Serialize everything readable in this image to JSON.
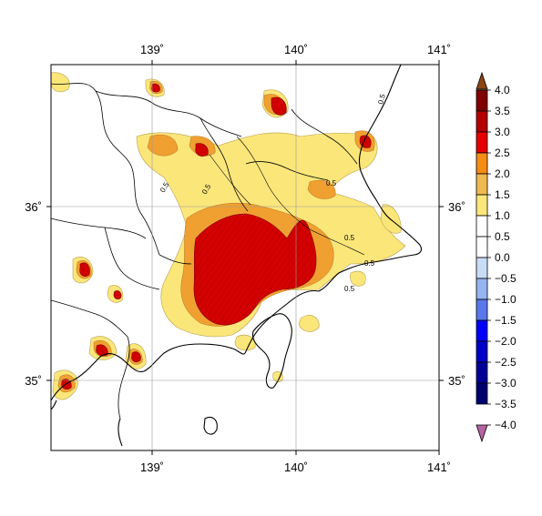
{
  "map": {
    "lon_labels": [
      "139˚",
      "140˚",
      "141˚"
    ],
    "lat_labels": [
      "36˚",
      "35˚"
    ],
    "contour_labels": [
      "0.5",
      "0.5",
      "0.5",
      "0.5",
      "0.5",
      "0.5",
      "0.5"
    ]
  },
  "colorbar": {
    "labels": [
      "4.0",
      "3.5",
      "3.0",
      "2.5",
      "2.0",
      "1.5",
      "1.0",
      "0.5",
      "0.0",
      "−0.5",
      "−1.0",
      "−1.5",
      "−2.0",
      "−2.5",
      "−3.0",
      "−3.5",
      "−4.0"
    ],
    "colors": [
      "#800000",
      "#b40000",
      "#e60000",
      "#f58c14",
      "#eeba50",
      "#fbe67a",
      "#ffffff",
      "#ffffff",
      "#c8dcf5",
      "#96b4f0",
      "#5a78eb",
      "#0000fa",
      "#0000c8",
      "#000096",
      "#00006e"
    ],
    "top_arrow_color": "#8b4513",
    "bottom_arrow_color": "#b464a0"
  }
}
